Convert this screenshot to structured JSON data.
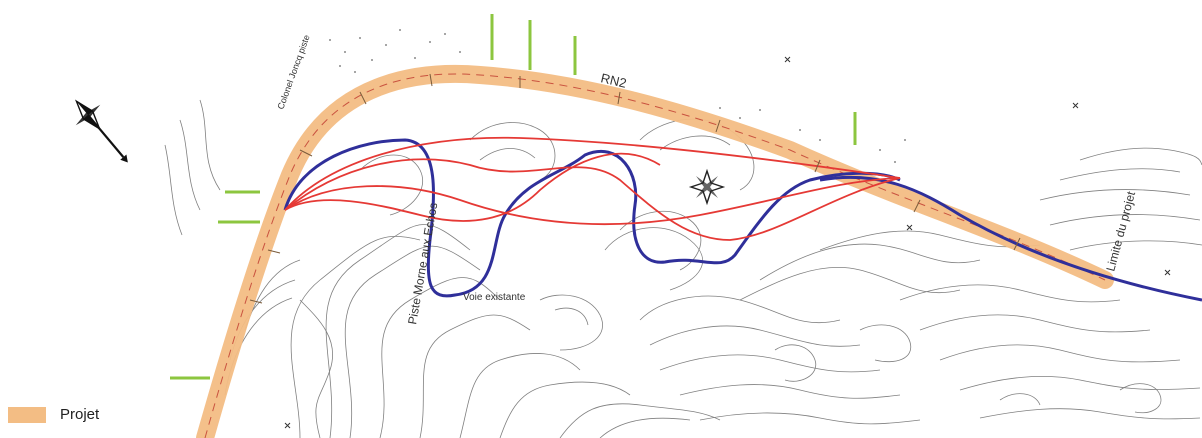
{
  "labels": {
    "road_main": "RN2",
    "piste": "Piste Morne aux Echos",
    "voie": "Voie existante",
    "limite": "Limite du projet",
    "colonel": "Colonel Joncq piste"
  },
  "legend": {
    "items": [
      {
        "label": "Projet",
        "color": "#f3bd84"
      }
    ]
  },
  "colors": {
    "projet": "#f3bd84",
    "projet_outline": "#e9a25a",
    "variant_red": "#e53935",
    "route_blue": "#2f2f9a",
    "contour": "#444444",
    "survey_green": "#8cc63f"
  },
  "icons": {
    "north_arrow": "compass-rose-icon",
    "compass_inner": "compass-star-icon"
  }
}
